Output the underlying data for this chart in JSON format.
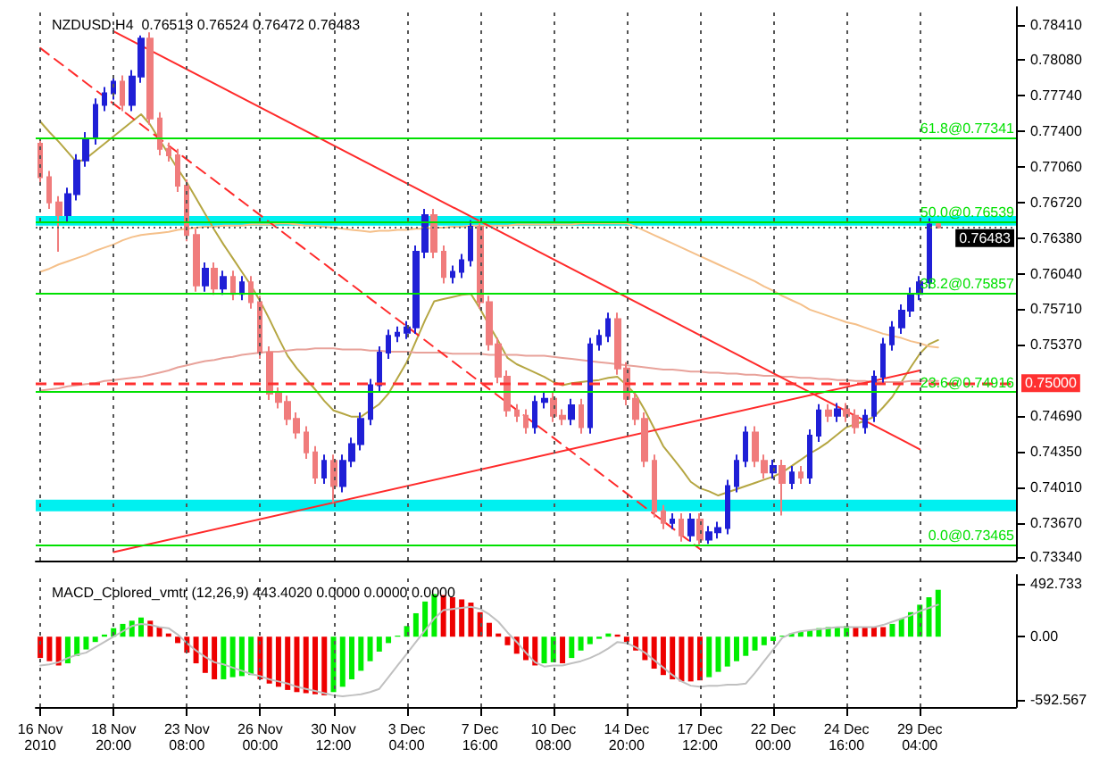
{
  "chart_data": [
    {
      "type": "candlestick",
      "title": "NZDUSD,H4  0.76513 0.76524 0.76472 0.76483",
      "categories": [
        "16 Nov 2010",
        null,
        null,
        null,
        null,
        null,
        null,
        null,
        "18 Nov 20:00",
        null,
        null,
        null,
        null,
        null,
        null,
        null,
        "23 Nov 08:00",
        null,
        null,
        null,
        null,
        null,
        null,
        null,
        "26 Nov 00:00",
        null,
        null,
        null,
        null,
        null,
        null,
        null,
        "30 Nov 12:00",
        null,
        null,
        null,
        null,
        null,
        null,
        null,
        "3 Dec 04:00",
        null,
        null,
        null,
        null,
        null,
        null,
        null,
        "7 Dec 16:00",
        null,
        null,
        null,
        null,
        null,
        null,
        null,
        "10 Dec 08:00",
        null,
        null,
        null,
        null,
        null,
        null,
        null,
        "14 Dec 20:00",
        null,
        null,
        null,
        null,
        null,
        null,
        null,
        "17 Dec 12:00",
        null,
        null,
        null,
        null,
        null,
        null,
        null,
        "22 Dec 00:00",
        null,
        null,
        null,
        null,
        null,
        null,
        null,
        "24 Dec 16:00",
        null,
        null,
        null,
        null,
        null,
        null,
        null,
        "29 Dec 04:00",
        null,
        null,
        null,
        null,
        null,
        null,
        null,
        null,
        null,
        null
      ],
      "ohlc": [
        [
          0.7728,
          0.7734,
          0.769,
          0.7696
        ],
        [
          0.7696,
          0.7702,
          0.7666,
          0.7672
        ],
        [
          0.7672,
          0.7678,
          0.7625,
          0.766
        ],
        [
          0.766,
          0.7686,
          0.7654,
          0.768
        ],
        [
          0.768,
          0.7718,
          0.7674,
          0.7712
        ],
        [
          0.7712,
          0.7739,
          0.7706,
          0.7733
        ],
        [
          0.7733,
          0.7771,
          0.7727,
          0.7765
        ],
        [
          0.7765,
          0.7782,
          0.7759,
          0.7776
        ],
        [
          0.7776,
          0.7793,
          0.777,
          0.7787
        ],
        [
          0.7787,
          0.7793,
          0.7759,
          0.7765
        ],
        [
          0.7765,
          0.7798,
          0.7759,
          0.7792
        ],
        [
          0.7792,
          0.7831,
          0.7786,
          0.7828
        ],
        [
          0.7828,
          0.7834,
          0.7746,
          0.7752
        ],
        [
          0.7752,
          0.7758,
          0.7717,
          0.7723
        ],
        [
          0.7723,
          0.7729,
          0.7711,
          0.7717
        ],
        [
          0.7717,
          0.7723,
          0.7682,
          0.7688
        ],
        [
          0.7688,
          0.7694,
          0.7635,
          0.7641
        ],
        [
          0.7641,
          0.7647,
          0.7587,
          0.7593
        ],
        [
          0.7593,
          0.7615,
          0.7587,
          0.7609
        ],
        [
          0.7609,
          0.7615,
          0.7584,
          0.759
        ],
        [
          0.759,
          0.7607,
          0.7584,
          0.7601
        ],
        [
          0.7601,
          0.7607,
          0.7579,
          0.7585
        ],
        [
          0.7585,
          0.7602,
          0.7579,
          0.7596
        ],
        [
          0.7596,
          0.7602,
          0.7571,
          0.7577
        ],
        [
          0.7577,
          0.7583,
          0.7523,
          0.7529
        ],
        [
          0.7529,
          0.7535,
          0.7484,
          0.749
        ],
        [
          0.749,
          0.7496,
          0.7476,
          0.7482
        ],
        [
          0.7482,
          0.7488,
          0.746,
          0.7466
        ],
        [
          0.7466,
          0.7472,
          0.7447,
          0.7453
        ],
        [
          0.7453,
          0.7459,
          0.7428,
          0.7434
        ],
        [
          0.7434,
          0.744,
          0.7404,
          0.741
        ],
        [
          0.741,
          0.7432,
          0.7404,
          0.7426
        ],
        [
          0.7426,
          0.7432,
          0.7386,
          0.7402
        ],
        [
          0.7402,
          0.7432,
          0.7396,
          0.7426
        ],
        [
          0.7426,
          0.7448,
          0.742,
          0.7442
        ],
        [
          0.7442,
          0.7472,
          0.7436,
          0.7466
        ],
        [
          0.7466,
          0.7504,
          0.746,
          0.7498
        ],
        [
          0.7498,
          0.7535,
          0.7492,
          0.7529
        ],
        [
          0.7529,
          0.7551,
          0.7523,
          0.7545
        ],
        [
          0.7545,
          0.7554,
          0.7539,
          0.7548
        ],
        [
          0.7548,
          0.7559,
          0.7542,
          0.7553
        ],
        [
          0.7553,
          0.7631,
          0.7547,
          0.7625
        ],
        [
          0.7625,
          0.7666,
          0.7619,
          0.766
        ],
        [
          0.766,
          0.7666,
          0.7619,
          0.7625
        ],
        [
          0.7625,
          0.7631,
          0.7595,
          0.7601
        ],
        [
          0.7601,
          0.7612,
          0.7595,
          0.7606
        ],
        [
          0.7606,
          0.7623,
          0.76,
          0.7617
        ],
        [
          0.7617,
          0.7655,
          0.7611,
          0.7649
        ],
        [
          0.7649,
          0.7655,
          0.7571,
          0.7577
        ],
        [
          0.7577,
          0.7583,
          0.7531,
          0.7537
        ],
        [
          0.7537,
          0.7543,
          0.75,
          0.7506
        ],
        [
          0.7506,
          0.7512,
          0.7468,
          0.7474
        ],
        [
          0.7474,
          0.748,
          0.7463,
          0.7469
        ],
        [
          0.7469,
          0.7475,
          0.7452,
          0.7458
        ],
        [
          0.7458,
          0.7488,
          0.7452,
          0.7482
        ],
        [
          0.7482,
          0.7491,
          0.7476,
          0.7485
        ],
        [
          0.7485,
          0.7491,
          0.7463,
          0.7469
        ],
        [
          0.7469,
          0.7475,
          0.746,
          0.7466
        ],
        [
          0.7466,
          0.7485,
          0.746,
          0.7479
        ],
        [
          0.7479,
          0.7485,
          0.7452,
          0.7458
        ],
        [
          0.7458,
          0.7543,
          0.7452,
          0.7537
        ],
        [
          0.7537,
          0.7551,
          0.7531,
          0.7545
        ],
        [
          0.7545,
          0.7567,
          0.7539,
          0.7561
        ],
        [
          0.7561,
          0.7567,
          0.7508,
          0.7514
        ],
        [
          0.7514,
          0.752,
          0.7479,
          0.7485
        ],
        [
          0.7485,
          0.7491,
          0.746,
          0.7466
        ],
        [
          0.7466,
          0.7472,
          0.742,
          0.7426
        ],
        [
          0.7426,
          0.7432,
          0.7372,
          0.7378
        ],
        [
          0.7378,
          0.7384,
          0.7361,
          0.7367
        ],
        [
          0.7367,
          0.7376,
          0.7361,
          0.737
        ],
        [
          0.737,
          0.7376,
          0.7349,
          0.7355
        ],
        [
          0.7355,
          0.7376,
          0.7349,
          0.737
        ],
        [
          0.737,
          0.7376,
          0.73465,
          0.7351
        ],
        [
          0.7351,
          0.7364,
          0.7347,
          0.7358
        ],
        [
          0.7358,
          0.7368,
          0.7352,
          0.7362
        ],
        [
          0.7362,
          0.7408,
          0.7356,
          0.7402
        ],
        [
          0.7402,
          0.7432,
          0.7396,
          0.7426
        ],
        [
          0.7426,
          0.7459,
          0.742,
          0.7453
        ],
        [
          0.7453,
          0.7459,
          0.742,
          0.7426
        ],
        [
          0.7426,
          0.7432,
          0.7409,
          0.7415
        ],
        [
          0.7415,
          0.7427,
          0.7409,
          0.7421
        ],
        [
          0.7421,
          0.7427,
          0.7374,
          0.7405
        ],
        [
          0.7405,
          0.7421,
          0.7399,
          0.7415
        ],
        [
          0.7415,
          0.7421,
          0.7404,
          0.741
        ],
        [
          0.741,
          0.7456,
          0.7404,
          0.745
        ],
        [
          0.745,
          0.748,
          0.7444,
          0.7474
        ],
        [
          0.7474,
          0.748,
          0.7463,
          0.7469
        ],
        [
          0.7469,
          0.7481,
          0.7463,
          0.7475
        ],
        [
          0.7475,
          0.7481,
          0.7463,
          0.7469
        ],
        [
          0.7469,
          0.7475,
          0.7452,
          0.7458
        ],
        [
          0.7458,
          0.7475,
          0.7452,
          0.7469
        ],
        [
          0.7469,
          0.7512,
          0.7463,
          0.7506
        ],
        [
          0.7506,
          0.7543,
          0.75,
          0.7537
        ],
        [
          0.7537,
          0.7559,
          0.7531,
          0.7553
        ],
        [
          0.7553,
          0.7575,
          0.7547,
          0.7569
        ],
        [
          0.7569,
          0.7591,
          0.7563,
          0.7585
        ],
        [
          0.7585,
          0.7602,
          0.7579,
          0.7596
        ],
        [
          0.7596,
          0.7657,
          0.759,
          0.7651
        ],
        [
          0.76513,
          0.76524,
          0.76472,
          0.76483
        ],
        null,
        null,
        null,
        null,
        null,
        null,
        null,
        null
      ],
      "colors": [
        "#f07c7c",
        "#f07c7c",
        "#f07c7c",
        "#1f1fd6",
        "#1f1fd6",
        "#1f1fd6",
        "#1f1fd6",
        "#1f1fd6",
        "#1f1fd6",
        "#f07c7c",
        "#1f1fd6",
        "#1f1fd6",
        "#f07c7c",
        "#f07c7c",
        "#f07c7c",
        "#f07c7c",
        "#f07c7c",
        "#f07c7c",
        "#1f1fd6",
        "#f07c7c",
        "#1f1fd6",
        "#f07c7c",
        "#1f1fd6",
        "#f07c7c",
        "#f07c7c",
        "#f07c7c",
        "#f07c7c",
        "#f07c7c",
        "#f07c7c",
        "#f07c7c",
        "#f07c7c",
        "#1f1fd6",
        "#f07c7c",
        "#1f1fd6",
        "#1f1fd6",
        "#1f1fd6",
        "#1f1fd6",
        "#1f1fd6",
        "#1f1fd6",
        "#1f1fd6",
        "#1f1fd6",
        "#1f1fd6",
        "#1f1fd6",
        "#f07c7c",
        "#f07c7c",
        "#1f1fd6",
        "#1f1fd6",
        "#1f1fd6",
        "#f07c7c",
        "#f07c7c",
        "#f07c7c",
        "#f07c7c",
        "#f07c7c",
        "#f07c7c",
        "#1f1fd6",
        "#1f1fd6",
        "#f07c7c",
        "#f07c7c",
        "#1f1fd6",
        "#f07c7c",
        "#1f1fd6",
        "#1f1fd6",
        "#1f1fd6",
        "#f07c7c",
        "#f07c7c",
        "#f07c7c",
        "#f07c7c",
        "#f07c7c",
        "#f07c7c",
        "#1f1fd6",
        "#f07c7c",
        "#1f1fd6",
        "#f07c7c",
        "#1f1fd6",
        "#1f1fd6",
        "#1f1fd6",
        "#1f1fd6",
        "#1f1fd6",
        "#f07c7c",
        "#f07c7c",
        "#1f1fd6",
        "#f07c7c",
        "#1f1fd6",
        "#f07c7c",
        "#1f1fd6",
        "#1f1fd6",
        "#f07c7c",
        "#1f1fd6",
        "#f07c7c",
        "#f07c7c",
        "#1f1fd6",
        "#1f1fd6",
        "#1f1fd6",
        "#1f1fd6",
        "#1f1fd6",
        "#1f1fd6",
        "#1f1fd6",
        "#1f1fd6",
        "#f07c7c",
        null,
        null,
        null,
        null,
        null,
        null,
        null,
        null
      ],
      "series": [
        {
          "type": "line",
          "color": "#b5a642",
          "values": [
            0.7749,
            0.7739,
            0.773,
            0.772,
            0.771,
            0.7714,
            0.7721,
            0.7728,
            0.7735,
            0.7742,
            0.7749,
            0.7756,
            0.7746,
            0.7732,
            0.7718,
            0.7704,
            0.7691,
            0.7676,
            0.7661,
            0.7646,
            0.7632,
            0.7619,
            0.7606,
            0.7593,
            0.7578,
            0.7561,
            0.7543,
            0.7526,
            0.7514,
            0.7504,
            0.7494,
            0.7483,
            0.7474,
            0.7471,
            0.7468,
            0.7468,
            0.7474,
            0.748,
            0.749,
            0.7505,
            0.752,
            0.754,
            0.756,
            0.7578,
            0.758,
            0.7582,
            0.7584,
            0.7585,
            0.7571,
            0.7555,
            0.754,
            0.7524,
            0.7518,
            0.7514,
            0.751,
            0.7506,
            0.7501,
            0.7498,
            0.75,
            0.7501,
            0.7502,
            0.7503,
            0.7505,
            0.7506,
            0.7498,
            0.7489,
            0.7474,
            0.7457,
            0.744,
            0.7429,
            0.7418,
            0.7406,
            0.74,
            0.7397,
            0.7393,
            0.7396,
            0.7399,
            0.7402,
            0.7405,
            0.7408,
            0.7411,
            0.7415,
            0.7421,
            0.7427,
            0.7433,
            0.7438,
            0.7444,
            0.7451,
            0.7458,
            0.7461,
            0.7464,
            0.7468,
            0.7477,
            0.7487,
            0.7501,
            0.7515,
            0.7528,
            0.7537,
            0.7541,
            null,
            null,
            null,
            null,
            null,
            null,
            null,
            null
          ]
        },
        {
          "type": "line",
          "color": "#f5c08a",
          "values": [
            0.7606,
            0.7609,
            0.7613,
            0.7616,
            0.7619,
            0.7622,
            0.7626,
            0.7629,
            0.7632,
            0.7636,
            0.7639,
            0.7641,
            0.7642,
            0.7643,
            0.7644,
            0.7646,
            0.7647,
            0.7648,
            0.7649,
            0.7649,
            0.765,
            0.765,
            0.765,
            0.7651,
            0.7651,
            0.7651,
            0.7652,
            0.7652,
            0.7651,
            0.765,
            0.765,
            0.7649,
            0.7648,
            0.7647,
            0.7646,
            0.7645,
            0.7644,
            0.7645,
            0.7645,
            0.7646,
            0.7646,
            0.7647,
            0.7647,
            0.7648,
            0.7648,
            0.7649,
            0.7649,
            0.765,
            0.765,
            0.765,
            0.765,
            0.765,
            0.7651,
            0.7651,
            0.7651,
            0.7651,
            0.7651,
            0.7651,
            0.7651,
            0.7652,
            0.7652,
            0.7652,
            0.7652,
            0.7652,
            0.7652,
            0.7649,
            0.7645,
            0.7641,
            0.7637,
            0.7633,
            0.7629,
            0.7625,
            0.7621,
            0.7617,
            0.7613,
            0.7609,
            0.7605,
            0.7601,
            0.7597,
            0.7592,
            0.7588,
            0.7583,
            0.7579,
            0.7575,
            0.757,
            0.7567,
            0.7564,
            0.7561,
            0.7558,
            0.7556,
            0.7553,
            0.755,
            0.7547,
            0.7545,
            0.7543,
            0.754,
            0.7538,
            0.7535,
            0.7534,
            null,
            null,
            null,
            null,
            null,
            null,
            null,
            null
          ]
        },
        {
          "type": "line",
          "color": "#e8a29a",
          "values": [
            0.7493,
            0.7494,
            0.7495,
            0.7497,
            0.7498,
            0.7499,
            0.75,
            0.7502,
            0.7503,
            0.7504,
            0.7505,
            0.7506,
            0.7508,
            0.751,
            0.7512,
            0.7515,
            0.7517,
            0.7519,
            0.7521,
            0.7522,
            0.7524,
            0.7525,
            0.7527,
            0.7528,
            0.7529,
            0.753,
            0.753,
            0.7531,
            0.7532,
            0.7532,
            0.7533,
            0.7533,
            0.7533,
            0.7532,
            0.7532,
            0.7532,
            0.7531,
            0.7531,
            0.753,
            0.753,
            0.753,
            0.7529,
            0.7529,
            0.7529,
            0.7529,
            0.7528,
            0.7528,
            0.7528,
            0.7528,
            0.7527,
            0.7527,
            0.7527,
            0.7527,
            0.7526,
            0.7526,
            0.7526,
            0.7525,
            0.7524,
            0.7523,
            0.7522,
            0.7521,
            0.752,
            0.7519,
            0.7518,
            0.7517,
            0.7516,
            0.7515,
            0.7514,
            0.7513,
            0.7513,
            0.7512,
            0.7511,
            0.7511,
            0.751,
            0.751,
            0.7509,
            0.7509,
            0.7508,
            0.7508,
            0.7507,
            0.7507,
            0.7506,
            0.7506,
            0.7505,
            0.7505,
            0.7504,
            0.7504,
            0.7503,
            0.7503,
            0.7502,
            0.7502,
            0.7501,
            0.7501,
            0.7501,
            0.7501,
            0.7502,
            0.7502,
            0.7502,
            0.7502,
            null,
            null,
            null,
            null,
            null,
            null,
            null,
            null
          ]
        },
        {
          "type": "line",
          "color": "#ff2a2a",
          "line_style": "solid",
          "x": [
            "18 Nov 20:00",
            "29 Dec 04:00"
          ],
          "values": [
            0.7835,
            0.7437
          ]
        },
        {
          "type": "line",
          "color": "#ff2a2a",
          "line_style": "solid",
          "x": [
            "18 Nov 20:00",
            "29 Dec 04:00"
          ],
          "values": [
            0.7339,
            0.7512
          ]
        },
        {
          "type": "line",
          "color": "#ff2a2a",
          "line_style": "dashed",
          "x": [
            "16 Nov 2010",
            "17 Dec 12:00"
          ],
          "values": [
            0.7819,
            0.7342
          ]
        }
      ],
      "bands": [
        {
          "axis": "y",
          "from": 0.765,
          "to": 0.7659,
          "color": "#00f0f0"
        },
        {
          "axis": "y",
          "from": 0.7378,
          "to": 0.7389,
          "color": "#00f0f0"
        }
      ],
      "ref_lines": [
        {
          "axis": "y",
          "value": 0.77341,
          "label": "61.8@0.77341",
          "color": "#00e000",
          "line_style": "solid"
        },
        {
          "axis": "y",
          "value": 0.76539,
          "label": "50.0@0.76539",
          "color": "#00e000",
          "line_style": "solid"
        },
        {
          "axis": "y",
          "value": 0.75857,
          "label": "38.2@0.75857",
          "color": "#00e000",
          "line_style": "solid"
        },
        {
          "axis": "y",
          "value": 0.74916,
          "label": "23.6@0.74916",
          "color": "#00e000",
          "line_style": "solid"
        },
        {
          "axis": "y",
          "value": 0.73465,
          "label": "0.0@0.73465",
          "color": "#00e000",
          "line_style": "solid"
        },
        {
          "axis": "y",
          "value": 0.75,
          "label": "0.75000",
          "color": "#ff3030",
          "line_style": "dashed"
        },
        {
          "axis": "y",
          "value": 0.76483,
          "label": "0.76483",
          "color": "#606060",
          "line_style": "dotted"
        }
      ],
      "ylim": [
        0.7331,
        0.7858
      ],
      "yticks": [
        {
          "value": 0.7334,
          "label": "0.73340"
        },
        {
          "value": 0.7367,
          "label": "0.73670"
        },
        {
          "value": 0.7401,
          "label": "0.74010"
        },
        {
          "value": 0.7435,
          "label": "0.74350"
        },
        {
          "value": 0.7469,
          "label": "0.74690"
        },
        {
          "value": 0.7537,
          "label": "0.75370"
        },
        {
          "value": 0.7571,
          "label": "0.75710"
        },
        {
          "value": 0.7604,
          "label": "0.76040"
        },
        {
          "value": 0.7638,
          "label": "0.76380"
        },
        {
          "value": 0.7672,
          "label": "0.76720"
        },
        {
          "value": 0.7706,
          "label": "0.77060"
        },
        {
          "value": 0.774,
          "label": "0.77400"
        },
        {
          "value": 0.7774,
          "label": "0.77740"
        },
        {
          "value": 0.7808,
          "label": "0.78080"
        },
        {
          "value": 0.7841,
          "label": "0.78410"
        }
      ],
      "tick_labels": "y",
      "grid": "x",
      "marker": "none"
    },
    {
      "type": "bar",
      "title": "MACD_Colored_vmtr (12,26,9) 443.4020 0.0000 0.0000 0.0000",
      "categories": [
        "16 Nov 2010",
        null,
        null,
        null,
        null,
        null,
        null,
        null,
        "18 Nov 20:00",
        null,
        null,
        null,
        null,
        null,
        null,
        null,
        "23 Nov 08:00",
        null,
        null,
        null,
        null,
        null,
        null,
        null,
        "26 Nov 00:00",
        null,
        null,
        null,
        null,
        null,
        null,
        null,
        "30 Nov 12:00",
        null,
        null,
        null,
        null,
        null,
        null,
        null,
        "3 Dec 04:00",
        null,
        null,
        null,
        null,
        null,
        null,
        null,
        "7 Dec 16:00",
        null,
        null,
        null,
        null,
        null,
        null,
        null,
        "10 Dec 08:00",
        null,
        null,
        null,
        null,
        null,
        null,
        null,
        "14 Dec 20:00",
        null,
        null,
        null,
        null,
        null,
        null,
        null,
        "17 Dec 12:00",
        null,
        null,
        null,
        null,
        null,
        null,
        null,
        "22 Dec 00:00",
        null,
        null,
        null,
        null,
        null,
        null,
        null,
        "24 Dec 16:00",
        null,
        null,
        null,
        null,
        null,
        null,
        null,
        "29 Dec 04:00",
        null,
        null,
        null,
        null,
        null,
        null,
        null,
        null,
        null,
        null
      ],
      "values": [
        -200,
        -230,
        -270,
        -250,
        -180,
        -120,
        -50,
        20,
        80,
        120,
        150,
        180,
        150,
        90,
        30,
        -60,
        -150,
        -250,
        -340,
        -400,
        -400,
        -380,
        -370,
        -360,
        -400,
        -440,
        -470,
        -500,
        -520,
        -530,
        -540,
        -550,
        -520,
        -470,
        -400,
        -320,
        -230,
        -140,
        -60,
        10,
        100,
        220,
        330,
        400,
        390,
        370,
        350,
        320,
        230,
        130,
        30,
        -80,
        -160,
        -220,
        -270,
        -250,
        -240,
        -250,
        -200,
        -130,
        -70,
        -20,
        30,
        20,
        -50,
        -130,
        -220,
        -300,
        -360,
        -400,
        -420,
        -420,
        -410,
        -380,
        -330,
        -280,
        -230,
        -180,
        -130,
        -80,
        -40,
        10,
        30,
        50,
        60,
        80,
        90,
        90,
        100,
        90,
        90,
        90,
        90,
        120,
        170,
        230,
        300,
        370,
        440,
        null,
        null,
        null,
        null,
        null,
        null,
        null,
        null
      ],
      "colors": [
        "#ee0000",
        "#ee0000",
        "#ee0000",
        "#00ee00",
        "#00ee00",
        "#00ee00",
        "#00ee00",
        "#00ee00",
        "#00ee00",
        "#00ee00",
        "#00ee00",
        "#00ee00",
        "#ee0000",
        "#ee0000",
        "#ee0000",
        "#ee0000",
        "#ee0000",
        "#ee0000",
        "#ee0000",
        "#ee0000",
        "#00ee00",
        "#00ee00",
        "#00ee00",
        "#00ee00",
        "#ee0000",
        "#ee0000",
        "#ee0000",
        "#ee0000",
        "#ee0000",
        "#ee0000",
        "#ee0000",
        "#ee0000",
        "#00ee00",
        "#00ee00",
        "#00ee00",
        "#00ee00",
        "#00ee00",
        "#00ee00",
        "#00ee00",
        "#00ee00",
        "#00ee00",
        "#00ee00",
        "#00ee00",
        "#00ee00",
        "#ee0000",
        "#ee0000",
        "#ee0000",
        "#ee0000",
        "#ee0000",
        "#ee0000",
        "#ee0000",
        "#ee0000",
        "#ee0000",
        "#ee0000",
        "#ee0000",
        "#00ee00",
        "#00ee00",
        "#ee0000",
        "#00ee00",
        "#00ee00",
        "#00ee00",
        "#00ee00",
        "#00ee00",
        "#ee0000",
        "#ee0000",
        "#ee0000",
        "#ee0000",
        "#ee0000",
        "#ee0000",
        "#ee0000",
        "#ee0000",
        "#ee0000",
        "#ee0000",
        "#00ee00",
        "#00ee00",
        "#00ee00",
        "#00ee00",
        "#00ee00",
        "#00ee00",
        "#00ee00",
        "#00ee00",
        "#00ee00",
        "#00ee00",
        "#00ee00",
        "#00ee00",
        "#00ee00",
        "#00ee00",
        "#00ee00",
        "#00ee00",
        "#ee0000",
        "#ee0000",
        "#ee0000",
        "#ee0000",
        "#00ee00",
        "#00ee00",
        "#00ee00",
        "#00ee00",
        "#00ee00",
        "#00ee00",
        null,
        null,
        null,
        null,
        null,
        null,
        null,
        null
      ],
      "series": [
        {
          "type": "line",
          "color": "#c0c0c0",
          "values": [
            -270,
            -260,
            -240,
            -200,
            -170,
            -150,
            -100,
            -50,
            0,
            50,
            100,
            120,
            110,
            90,
            80,
            20,
            -60,
            -130,
            -190,
            -240,
            -260,
            -290,
            -320,
            -350,
            -370,
            -400,
            -420,
            -440,
            -470,
            -490,
            -510,
            -530,
            -550,
            -560,
            -550,
            -540,
            -520,
            -490,
            -380,
            -270,
            -160,
            -50,
            60,
            170,
            250,
            260,
            270,
            280,
            260,
            210,
            140,
            40,
            -50,
            -150,
            -240,
            -280,
            -270,
            -270,
            -250,
            -230,
            -200,
            -160,
            -110,
            -50,
            -60,
            -100,
            -150,
            -220,
            -290,
            -360,
            -420,
            -460,
            -470,
            -460,
            -460,
            -450,
            -450,
            -440,
            -340,
            -230,
            -120,
            -10,
            30,
            50,
            60,
            70,
            80,
            90,
            90,
            90,
            90,
            90,
            110,
            140,
            170,
            200,
            240,
            270,
            300,
            null,
            null,
            null,
            null,
            null,
            null,
            null,
            null
          ]
        }
      ],
      "ylim": [
        -660,
        580
      ],
      "yticks": [
        {
          "value": -592.567,
          "label": "-592.567"
        },
        {
          "value": 0,
          "label": "0.00"
        },
        {
          "value": 492.733,
          "label": "492.733"
        }
      ],
      "grid": "x",
      "marker": "none"
    }
  ]
}
